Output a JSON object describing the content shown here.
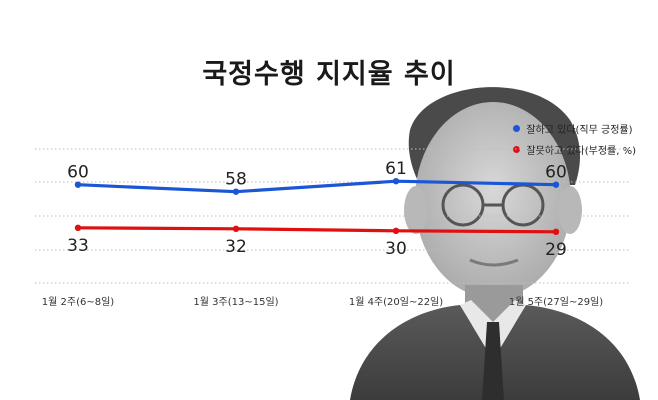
{
  "chart_data": {
    "type": "line",
    "title": "국정수행 지지율 추이",
    "categories": [
      "1월 2주(6~8일)",
      "1월 3주(13~15일)",
      "1월 4주(20일~22일)",
      "1월 5주(27일~29일)"
    ],
    "series": [
      {
        "name": "잘하고 있다(직무 긍정률)",
        "values": [
          60,
          58,
          61,
          60
        ],
        "color": "#1a56d6"
      },
      {
        "name": "잘못하고 있다(부정률, %)",
        "values": [
          33,
          32,
          30,
          29
        ],
        "color": "#e01010"
      }
    ],
    "legend_position": "top-right",
    "grid": true,
    "y_axis_visible": false
  }
}
